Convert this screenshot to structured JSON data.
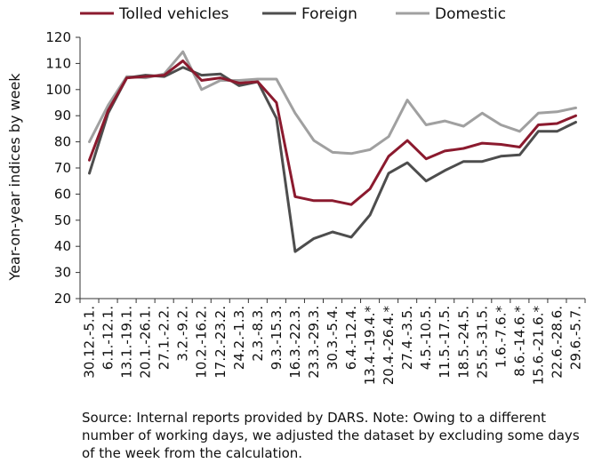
{
  "chart_data": {
    "type": "line",
    "title": "",
    "xlabel": "",
    "ylabel": "Year-on-year indices by week",
    "ylim": [
      20,
      120
    ],
    "yticks": [
      20,
      30,
      40,
      50,
      60,
      70,
      80,
      90,
      100,
      110,
      120
    ],
    "grid": false,
    "legend_position": "top",
    "categories": [
      "30.12.-5.1.",
      "6.1.-12.1.",
      "13.1.-19.1.",
      "20.1.-26.1.",
      "27.1.-2.2.",
      "3.2.-9.2.",
      "10.2.-16.2.",
      "17.2.-23.2.",
      "24.2.-1.3.",
      "2.3.-8.3.",
      "9.3.-15.3.",
      "16.3.-22.3.",
      "23.3.-29.3.",
      "30.3.-5.4.",
      "6.4.-12.4.",
      "13.4.-19.4.*",
      "20.4.-26.4.*",
      "27.4.-3.5.",
      "4.5.-10.5.",
      "11.5.-17.5.",
      "18.5.-24.5.",
      "25.5.-31.5.",
      "1.6.-7.6.*",
      "8.6.-14.6.*",
      "15.6.-21.6.*",
      "22.6.-28.6.",
      "29.6.-5.7."
    ],
    "series": [
      {
        "name": "Tolled vehicles",
        "color": "#8b1a2e",
        "values": [
          73,
          92,
          104.5,
          105,
          105.5,
          111,
          103.5,
          104.5,
          102.5,
          103,
          95,
          59,
          57.5,
          57.5,
          56,
          62,
          74.5,
          80.5,
          73.5,
          76.5,
          77.5,
          79.5,
          79,
          78,
          86.5,
          87,
          90
        ]
      },
      {
        "name": "Foreign",
        "color": "#4d4d4d",
        "values": [
          68,
          91,
          104.5,
          105.5,
          105,
          108.5,
          105.5,
          106,
          101.5,
          103,
          89,
          38,
          43,
          45.5,
          43.5,
          52,
          68,
          72,
          65,
          69,
          72.5,
          72.5,
          74.5,
          75,
          84,
          84,
          87.5
        ]
      },
      {
        "name": "Domestic",
        "color": "#a0a0a0",
        "values": [
          80,
          94,
          105,
          104.5,
          106,
          114.5,
          100,
          103.5,
          103.5,
          104,
          104,
          91,
          80.5,
          76,
          75.5,
          77,
          82,
          96,
          86.5,
          88,
          86,
          91,
          86.5,
          84,
          91,
          91.5,
          93
        ]
      }
    ]
  },
  "source_note": "Source: Internal reports provided by DARS. Note: Owing to a different number of working days, we adjusted the dataset by excluding some days of the week from the calculation."
}
